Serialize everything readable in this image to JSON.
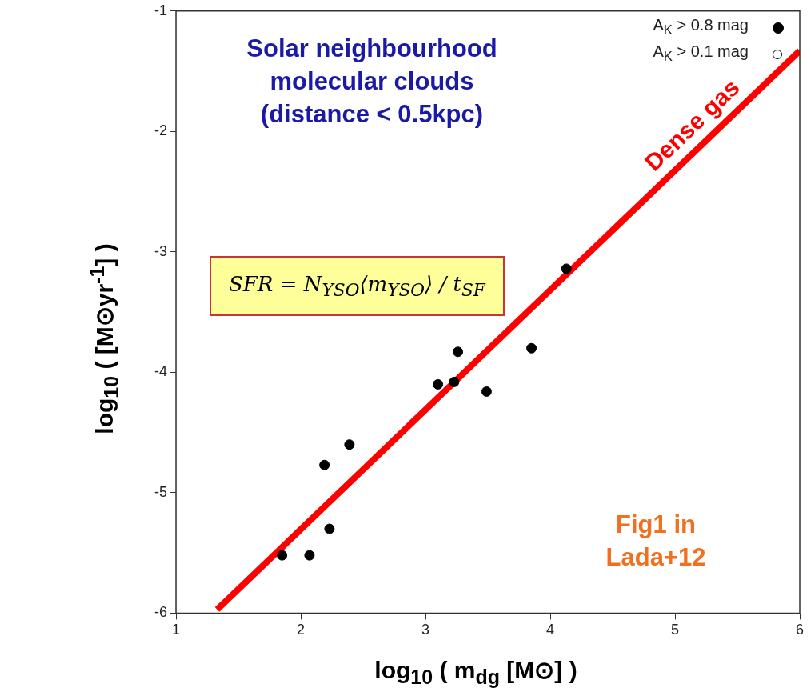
{
  "chart_data": {
    "type": "scatter",
    "xlabel": "log$_{10}$ ( m$_{dg}$ [M⊙] )",
    "ylabel": "log$_{10}$ (  [M⊙yr$^{-1}$] )",
    "xlim": [
      1,
      6
    ],
    "xticks": [
      1,
      2,
      3,
      4,
      5,
      6
    ],
    "ylim": [
      -6,
      -1
    ],
    "yticks": [
      -6,
      -5,
      -4,
      -3,
      -2,
      -1
    ],
    "legend": "top right",
    "series": [
      {
        "name": "A$_{K}$ > 0.8 mag",
        "color": "#000000",
        "marker": "circle",
        "x": [
          1.85,
          2.07,
          2.23,
          2.19,
          2.39,
          3.1,
          3.23,
          3.26,
          3.49,
          3.85,
          4.13
        ],
        "values": [
          -5.52,
          -5.52,
          -5.3,
          -4.77,
          -4.6,
          -4.1,
          -4.08,
          -3.83,
          -4.16,
          -3.8,
          -3.14
        ]
      },
      {
        "name": "A$_{K}$ > 0.1 mag",
        "color": "#000000",
        "marker": "circle"
      },
      {
        "type": "line",
        "name": "Dense gas",
        "color": "#ff0000",
        "line_style": "solid",
        "x": [
          1.33,
          6.0
        ],
        "values": [
          -5.97,
          -1.33
        ]
      }
    ],
    "annotations": [
      "Solar neighbourhood molecular clouds (distance < 0.5kpc)",
      "Fig1 in Lada+12",
      "SFR = N$_{YSO}$⟨m$_{YSO}$⟩ / t$_{SF}$"
    ]
  }
}
